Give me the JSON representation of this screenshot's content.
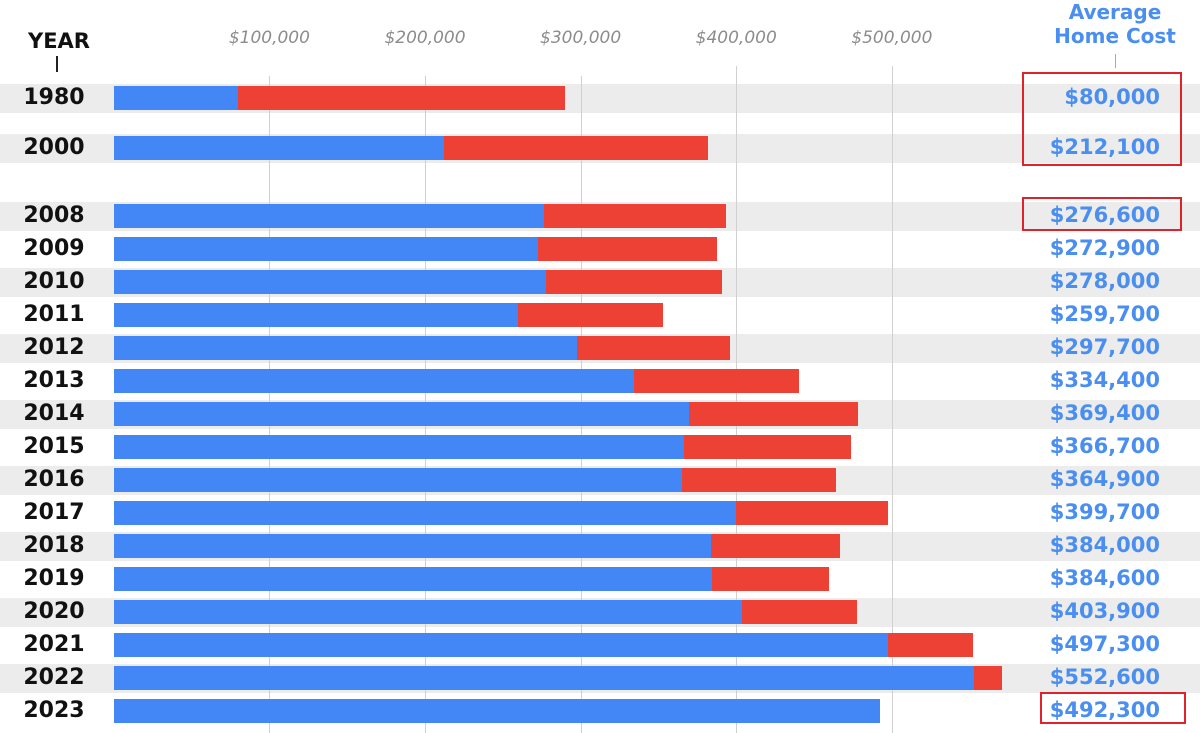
{
  "header": {
    "year_label": "YEAR",
    "avg_label_line1": "Average",
    "avg_label_line2": "Home Cost"
  },
  "colors": {
    "blue": "#4287f5",
    "red": "#ec4134",
    "label_blue": "#4a8ef0",
    "highlight": "#e0222b",
    "row_band": "#ececec"
  },
  "chart_data": {
    "type": "bar",
    "orientation": "horizontal",
    "stacked": true,
    "x_ticks": [
      "$100,000",
      "$200,000",
      "$300,000",
      "$400,000",
      "$500,000"
    ],
    "x_tick_values": [
      100000,
      200000,
      300000,
      400000,
      500000
    ],
    "xlim": [
      -5000,
      565000
    ],
    "grid": true,
    "categories": [
      "1980",
      "2000",
      "2008",
      "2009",
      "2010",
      "2011",
      "2012",
      "2013",
      "2014",
      "2015",
      "2016",
      "2017",
      "2018",
      "2019",
      "2020",
      "2021",
      "2022",
      "2023"
    ],
    "series": [
      {
        "color": "#4287f5",
        "values": [
          80000,
          212100,
          276600,
          272900,
          278000,
          259700,
          297700,
          334400,
          369400,
          366700,
          364900,
          399700,
          384000,
          384600,
          403900,
          497300,
          552600,
          492300
        ]
      },
      {
        "color": "#ec4134",
        "values": [
          210000,
          170000,
          117000,
          115000,
          113000,
          93000,
          98000,
          106000,
          109000,
          107000,
          99000,
          98000,
          83000,
          75000,
          74000,
          55000,
          18000,
          0
        ]
      }
    ],
    "value_labels": [
      "$80,000",
      "$212,100",
      "$276,600",
      "$272,900",
      "$278,000",
      "$259,700",
      "$297,700",
      "$334,400",
      "$369,400",
      "$366,700",
      "$364,900",
      "$399,700",
      "$384,000",
      "$384,600",
      "$403,900",
      "$497,300",
      "$552,600",
      "$492,300"
    ],
    "highlighted_values": [
      "$80,000",
      "$212,100",
      "$276,600",
      "$492,300"
    ]
  }
}
